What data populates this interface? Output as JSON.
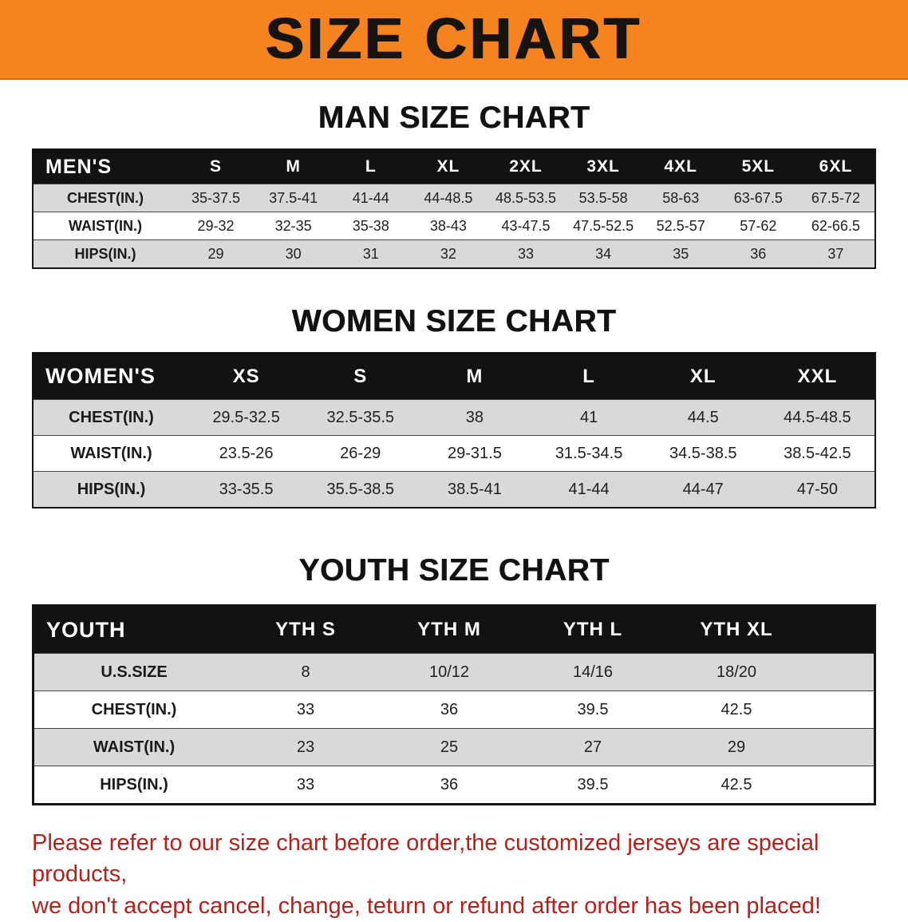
{
  "banner": {
    "title": "SIZE CHART"
  },
  "chart_data": [
    {
      "type": "table",
      "title": "MAN SIZE CHART",
      "header": [
        "MEN'S",
        "S",
        "M",
        "L",
        "XL",
        "2XL",
        "3XL",
        "4XL",
        "5XL",
        "6XL"
      ],
      "rows": [
        [
          "CHEST(IN.)",
          "35-37.5",
          "37.5-41",
          "41-44",
          "44-48.5",
          "48.5-53.5",
          "53.5-58",
          "58-63",
          "63-67.5",
          "67.5-72"
        ],
        [
          "WAIST(IN.)",
          "29-32",
          "32-35",
          "35-38",
          "38-43",
          "43-47.5",
          "47.5-52.5",
          "52.5-57",
          "57-62",
          "62-66.5"
        ],
        [
          "HIPS(IN.)",
          "29",
          "30",
          "31",
          "32",
          "33",
          "34",
          "35",
          "36",
          "37"
        ]
      ]
    },
    {
      "type": "table",
      "title": "WOMEN SIZE CHART",
      "header": [
        "WOMEN'S",
        "XS",
        "S",
        "M",
        "L",
        "XL",
        "XXL"
      ],
      "rows": [
        [
          "CHEST(IN.)",
          "29.5-32.5",
          "32.5-35.5",
          "38",
          "41",
          "44.5",
          "44.5-48.5"
        ],
        [
          "WAIST(IN.)",
          "23.5-26",
          "26-29",
          "29-31.5",
          "31.5-34.5",
          "34.5-38.5",
          "38.5-42.5"
        ],
        [
          "HIPS(IN.)",
          "33-35.5",
          "35.5-38.5",
          "38.5-41",
          "41-44",
          "44-47",
          "47-50"
        ]
      ]
    },
    {
      "type": "table",
      "title": "YOUTH SIZE CHART",
      "header": [
        "YOUTH",
        "YTH S",
        "YTH M",
        "YTH L",
        "YTH XL"
      ],
      "rows": [
        [
          "U.S.SIZE",
          "8",
          "10/12",
          "14/16",
          "18/20"
        ],
        [
          "CHEST(IN.)",
          "33",
          "36",
          "39.5",
          "42.5"
        ],
        [
          "WAIST(IN.)",
          "23",
          "25",
          "27",
          "29"
        ],
        [
          "HIPS(IN.)",
          "33",
          "36",
          "39.5",
          "42.5"
        ]
      ]
    }
  ],
  "footer": {
    "line1": "Please refer to our size chart before order,the customized jerseys are special products,",
    "line2": "we don't accept cancel, change, teturn or refund after order has been placed!"
  },
  "colors": {
    "banner_bg": "#f5831f",
    "table_header_bg": "#121212",
    "row_stripe": "#d9d9d9",
    "notice_text": "#b2221c"
  }
}
